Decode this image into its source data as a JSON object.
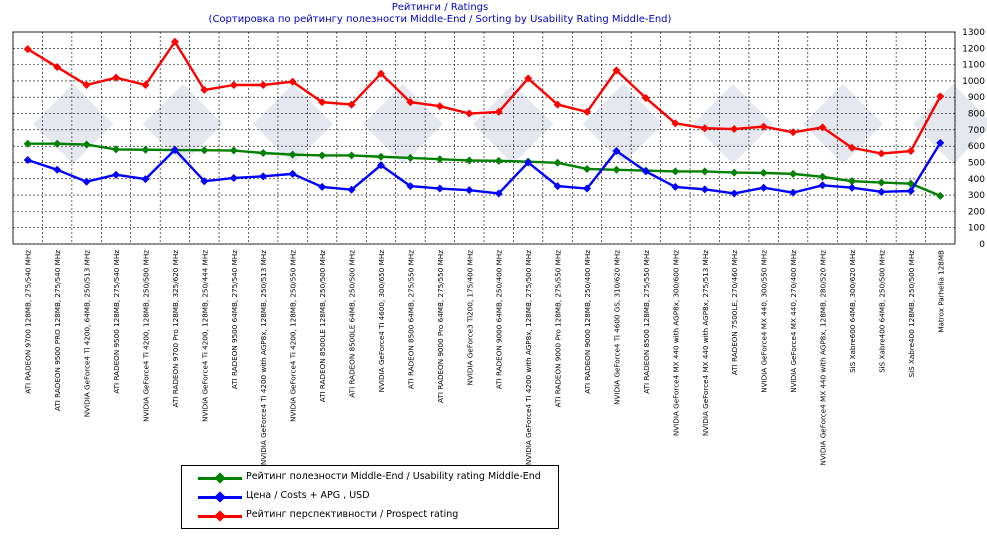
{
  "chart_data": {
    "type": "line",
    "title": "Рейтинги / Ratings",
    "subtitle": "(Сортировка по рейтингу полезности Middle-End / Sorting by Usability Rating Middle-End)",
    "categories": [
      "ATI RADEON 9700 128MB, 275/540 MHz",
      "ATI RADEON 9500 PRO 128MB, 275/540 MHz",
      "NVIDIA GeForce4 Ti 4200, 64MB, 250/513 MHz",
      "ATI RADEON 9500 128MB, 275/540 MHz",
      "NVIDIA GeForce4 Ti 4200, 128MB, 250/500 MHz",
      "ATI RADEON 9700 Pro 128MB, 325/620 MHz",
      "NVIDIA GeForce4 Ti 4200, 128MB, 250/444 MHz",
      "ATI RADEON 9500 64MB, 275/540 MHz",
      "NVIDIA GeForce4 Ti 4200 with AGP8x, 128MB, 250/513 MHz",
      "NVIDIA GeForce4 Ti 4200, 128MB, 250/550 MHz",
      "ATI RADEON 8500LE 128MB, 250/500 MHz",
      "ATI RADEON 8500LE 64MB, 250/500 MHz",
      "NVIDIA GeForce4 Ti 4600, 300/650 MHz",
      "ATI RADEON 8500 64MB, 275/550 MHz",
      "ATI RADEON 9000 Pro 64MB, 275/550 MHz",
      "NVIDIA GeForce3 Ti200, 175/400 MHz",
      "ATI RADEON 9000 64MB, 250/400 MHz",
      "NVIDIA GeForce4 Ti 4200 with AGP8x, 128MB, 275/500 MHz",
      "ATI RADEON 9000 Pro 128MB, 275/550 MHz",
      "ATI RADEON 9000 128MB, 250/400 MHz",
      "NVIDIA GeForce4 Ti 4600 GS, 310/620 MHz",
      "ATI RADEON 8500 128MB, 275/550 MHz",
      "NVIDIA GeForce4 MX 440 with AGP8x, 300/600 MHz",
      "NVIDIA GeForce4 MX 440 with AGP8x, 275/513 MHz",
      "ATI RADEON 7500LE, 270/460 MHz",
      "NVIDIA GeForce4 MX 440, 300/550 MHz",
      "NVIDIA GeForce4 MX 440, 270/400 MHz",
      "NVIDIA GeForce4 MX 440 with AGP8x, 128MB, 280/520 MHz",
      "SiS Xabre600 64MB, 300/620 MHz",
      "SiS Xabre400 64MB, 250/500 MHz",
      "SiS Xabre400 128MB, 250/500 MHz",
      "Matrox Parhelia 128MB"
    ],
    "series": [
      {
        "name": "Рейтинг полезности Middle-End / Usability rating Middle-End",
        "color": "#008000",
        "values": [
          615,
          615,
          610,
          580,
          578,
          576,
          575,
          573,
          558,
          548,
          543,
          543,
          535,
          528,
          520,
          512,
          510,
          505,
          498,
          460,
          455,
          450,
          445,
          445,
          438,
          436,
          430,
          412,
          385,
          377,
          370,
          295
        ]
      },
      {
        "name": "Цена / Costs + APG , USD",
        "color": "#0000ff",
        "values": [
          515,
          455,
          382,
          425,
          398,
          578,
          385,
          405,
          415,
          430,
          350,
          333,
          483,
          355,
          340,
          330,
          310,
          500,
          355,
          340,
          570,
          445,
          350,
          335,
          310,
          345,
          315,
          360,
          345,
          320,
          325,
          620
        ]
      },
      {
        "name": "Рейтинг перспективности / Prospect rating",
        "color": "#ff0000",
        "values": [
          1195,
          1085,
          975,
          1020,
          975,
          1240,
          945,
          975,
          975,
          995,
          870,
          855,
          1045,
          870,
          845,
          800,
          810,
          1015,
          855,
          810,
          1065,
          895,
          740,
          710,
          705,
          720,
          685,
          715,
          590,
          555,
          570,
          905
        ]
      }
    ],
    "xlabel": "",
    "ylabel": "",
    "ylim": [
      0,
      1300
    ],
    "yticks": [
      "0",
      "100",
      "200",
      "300",
      "400",
      "500",
      "600",
      "700",
      "800",
      "900",
      "1000",
      "1100",
      "1200",
      "1300"
    ],
    "grid": true,
    "legend_position": "bottom-left"
  }
}
